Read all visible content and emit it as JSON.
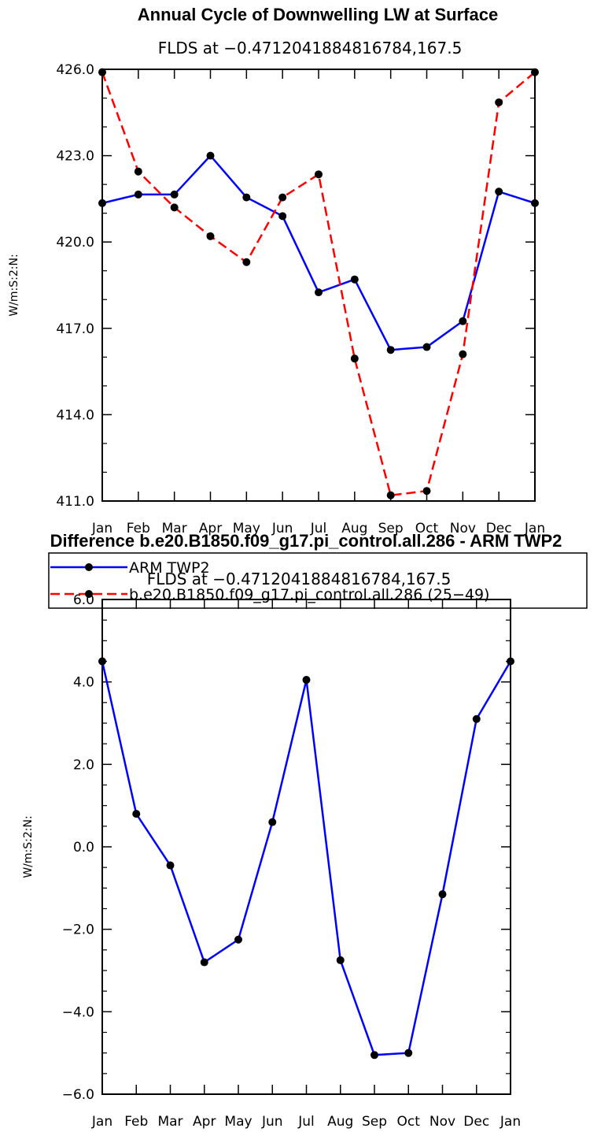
{
  "chart_data": [
    {
      "type": "line",
      "title": "Annual Cycle of Downwelling LW at Surface",
      "subtitle": "FLDS at −0.4712041884816784,167.5",
      "ylabel": "W/m:S:2:N:",
      "xlabel": "",
      "categories": [
        "Jan",
        "Feb",
        "Mar",
        "Apr",
        "May",
        "Jun",
        "Jul",
        "Aug",
        "Sep",
        "Oct",
        "Nov",
        "Dec",
        "Jan"
      ],
      "ylim": [
        411.0,
        426.0
      ],
      "yticks": [
        "411.0",
        "414.0",
        "417.0",
        "420.0",
        "423.0",
        "426.0"
      ],
      "series": [
        {
          "name": "ARM TWP2",
          "color": "#0000ff",
          "dash": "solid",
          "values": [
            421.35,
            421.65,
            421.65,
            423.0,
            421.55,
            420.9,
            418.25,
            418.7,
            416.25,
            416.35,
            417.25,
            421.75,
            421.35
          ]
        },
        {
          "name": "b.e20.B1850.f09_g17.pi_control.all.286 (25−49)",
          "color": "#ff0000",
          "dash": "dashed",
          "values": [
            425.9,
            422.45,
            421.2,
            420.2,
            419.3,
            421.55,
            422.35,
            415.95,
            411.2,
            411.35,
            416.1,
            424.85,
            425.9
          ]
        }
      ]
    },
    {
      "type": "line",
      "title": "Difference b.e20.B1850.f09_g17.pi_control.all.286 - ARM TWP2",
      "subtitle": "FLDS at −0.4712041884816784,167.5",
      "ylabel": "W/m:S:2:N:",
      "xlabel": "",
      "categories": [
        "Jan",
        "Feb",
        "Mar",
        "Apr",
        "May",
        "Jun",
        "Jul",
        "Aug",
        "Sep",
        "Oct",
        "Nov",
        "Dec",
        "Jan"
      ],
      "ylim": [
        -6.0,
        6.0
      ],
      "yticks": [
        "−6.0",
        "−4.0",
        "−2.0",
        "0.0",
        "2.0",
        "4.0",
        "6.0"
      ],
      "series": [
        {
          "name": "Difference",
          "color": "#0000ff",
          "dash": "solid",
          "values": [
            4.5,
            0.8,
            -0.45,
            -2.8,
            -2.25,
            0.6,
            4.05,
            -2.75,
            -5.05,
            -5.0,
            -1.15,
            3.1,
            4.5
          ]
        }
      ]
    }
  ]
}
